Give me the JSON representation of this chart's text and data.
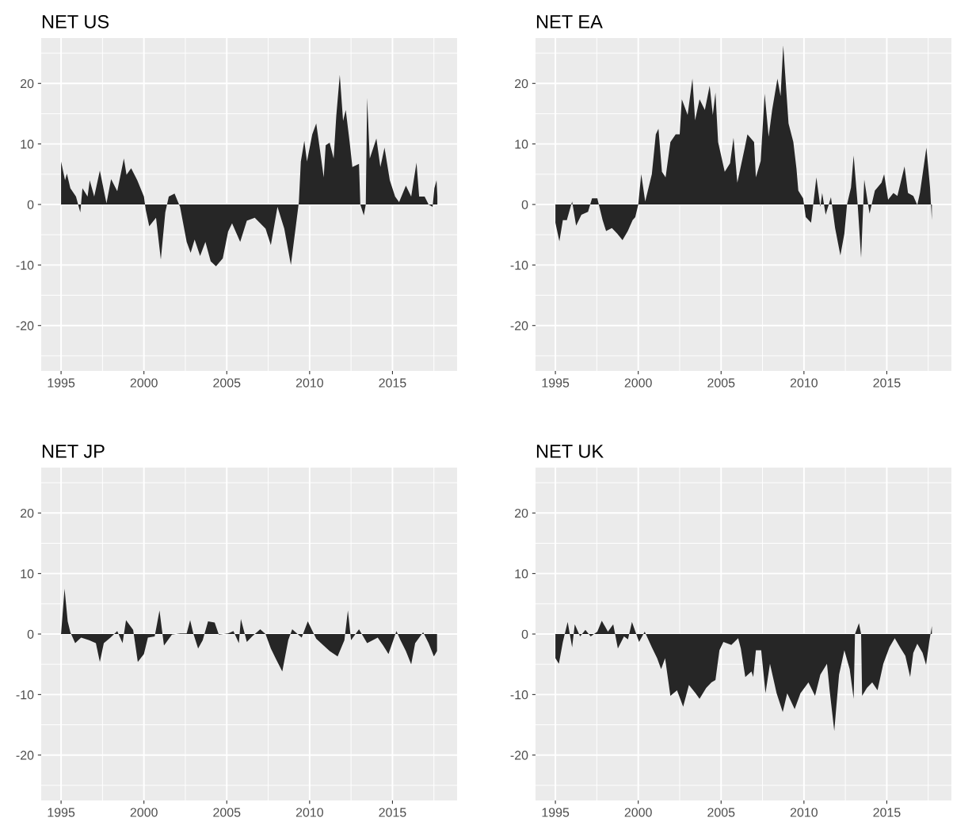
{
  "chart_data": [
    {
      "type": "area",
      "title": "NET US",
      "color": "#262626",
      "grid": true,
      "xlim": [
        1993.8,
        2018.9
      ],
      "ylim": [
        -27.5,
        27.5
      ],
      "xticks": [
        1995,
        2000,
        2005,
        2010,
        2015
      ],
      "yticks": [
        -20,
        -10,
        0,
        10,
        20
      ],
      "x": [
        1995.0,
        1995.24,
        1995.35,
        1995.56,
        1995.9,
        1996.16,
        1996.29,
        1996.6,
        1996.73,
        1997.0,
        1997.34,
        1997.74,
        1998.02,
        1998.39,
        1998.79,
        1998.95,
        1999.23,
        1999.6,
        2000.0,
        2000.11,
        2000.32,
        2000.73,
        2001.02,
        2001.29,
        2001.5,
        2001.85,
        2002.18,
        2002.58,
        2002.82,
        2003.06,
        2003.39,
        2003.71,
        2004.03,
        2004.35,
        2004.76,
        2005.08,
        2005.32,
        2005.81,
        2006.21,
        2006.69,
        2007.02,
        2007.34,
        2007.66,
        2008.06,
        2008.47,
        2008.87,
        2009.19,
        2009.35,
        2009.47,
        2009.68,
        2009.84,
        2010.16,
        2010.4,
        2010.65,
        2010.85,
        2010.97,
        2011.21,
        2011.45,
        2011.61,
        2011.82,
        2012.02,
        2012.18,
        2012.42,
        2012.58,
        2012.98,
        2013.06,
        2013.27,
        2013.39,
        2013.47,
        2013.63,
        2014.03,
        2014.27,
        2014.52,
        2014.84,
        2015.16,
        2015.4,
        2015.81,
        2016.13,
        2016.45,
        2016.61,
        2016.94,
        2017.18,
        2017.42,
        2017.53,
        2017.66,
        2017.71
      ],
      "values": [
        7.1,
        4.0,
        5.1,
        2.7,
        1.3,
        -1.3,
        2.7,
        1.3,
        4.0,
        1.3,
        5.6,
        0.2,
        4.2,
        2.2,
        7.6,
        4.9,
        6.0,
        4.0,
        1.3,
        -0.9,
        -3.6,
        -2.2,
        -9.1,
        -1.3,
        1.3,
        1.8,
        -0.4,
        -6.2,
        -8.0,
        -5.8,
        -8.5,
        -6.2,
        -9.4,
        -10.2,
        -8.9,
        -4.5,
        -3.1,
        -6.2,
        -2.7,
        -2.2,
        -3.1,
        -4.0,
        -6.7,
        -0.4,
        -4.0,
        -10.0,
        -3.1,
        0.4,
        7.1,
        10.5,
        7.1,
        11.6,
        13.4,
        8.5,
        4.5,
        9.8,
        10.2,
        7.6,
        14.7,
        21.4,
        13.8,
        15.6,
        10.2,
        6.2,
        6.7,
        0,
        -1.8,
        0,
        17.6,
        7.6,
        10.9,
        6.2,
        9.4,
        4.0,
        1.3,
        0.4,
        3.1,
        1.3,
        6.9,
        1.3,
        1.3,
        0,
        -0.4,
        2.7,
        4.0,
        1.3
      ]
    },
    {
      "type": "area",
      "title": "NET EA",
      "color": "#262626",
      "grid": true,
      "xlim": [
        1993.8,
        2018.9
      ],
      "ylim": [
        -27.5,
        27.5
      ],
      "xticks": [
        1995,
        2000,
        2005,
        2010,
        2015
      ],
      "yticks": [
        -20,
        -10,
        0,
        10,
        20
      ],
      "x": [
        1995.0,
        1995.24,
        1995.45,
        1995.69,
        1996.01,
        1996.25,
        1996.57,
        1996.97,
        1997.21,
        1997.53,
        1997.85,
        1998.06,
        1998.41,
        1998.73,
        1999.05,
        1999.37,
        1999.66,
        1999.82,
        2000.0,
        2000.18,
        2000.42,
        2000.82,
        2001.06,
        2001.22,
        2001.43,
        2001.65,
        2001.94,
        2002.26,
        2002.5,
        2002.63,
        2002.98,
        2003.27,
        2003.43,
        2003.7,
        2004.02,
        2004.31,
        2004.5,
        2004.66,
        2004.82,
        2005.22,
        2005.54,
        2005.75,
        2005.98,
        2006.43,
        2006.59,
        2006.99,
        2007.1,
        2007.39,
        2007.63,
        2007.87,
        2008.08,
        2008.4,
        2008.59,
        2008.75,
        2009.07,
        2009.36,
        2009.55,
        2009.66,
        2009.95,
        2010.11,
        2010.43,
        2010.56,
        2010.75,
        2010.99,
        2011.1,
        2011.31,
        2011.63,
        2011.88,
        2012.2,
        2012.44,
        2012.6,
        2012.84,
        2013.0,
        2013.24,
        2013.45,
        2013.64,
        2013.96,
        2014.28,
        2014.68,
        2014.84,
        2015.08,
        2015.4,
        2015.64,
        2016.07,
        2016.28,
        2016.6,
        2016.84,
        2017.0,
        2017.39,
        2017.61,
        2017.72
      ],
      "values": [
        -3.0,
        -6.1,
        -2.6,
        -2.6,
        0.5,
        -3.5,
        -1.7,
        -1.2,
        1.0,
        1.0,
        -2.6,
        -4.4,
        -3.9,
        -4.8,
        -5.9,
        -4.4,
        -2.6,
        -2.1,
        0,
        5.0,
        0.5,
        5.0,
        11.6,
        12.5,
        5.4,
        4.5,
        10.3,
        11.6,
        11.6,
        17.4,
        14.8,
        20.8,
        13.9,
        17.4,
        15.6,
        19.6,
        14.8,
        18.5,
        10.3,
        5.4,
        6.8,
        11.0,
        3.6,
        9.4,
        11.6,
        10.3,
        4.5,
        7.2,
        18.3,
        11.2,
        15.6,
        20.8,
        17.9,
        26.3,
        13.4,
        10.3,
        5.9,
        2.3,
        1.0,
        -2.1,
        -3.0,
        0,
        4.5,
        -0.4,
        1.9,
        -1.7,
        1.2,
        -3.9,
        -8.4,
        -4.8,
        0,
        2.8,
        8.1,
        0.1,
        -8.8,
        4.1,
        -1.5,
        2.3,
        3.6,
        5.0,
        0.8,
        1.9,
        1.4,
        6.3,
        1.9,
        1.4,
        -0.1,
        1.9,
        9.4,
        2.8,
        -2.6
      ]
    },
    {
      "type": "area",
      "title": "NET JP",
      "color": "#262626",
      "grid": true,
      "xlim": [
        1993.8,
        2018.9
      ],
      "ylim": [
        -27.5,
        27.5
      ],
      "xticks": [
        1995,
        2000,
        2005,
        2010,
        2015
      ],
      "yticks": [
        -20,
        -10,
        0,
        10,
        20
      ],
      "x": [
        1995.0,
        1995.21,
        1995.4,
        1995.56,
        1995.85,
        1996.21,
        1996.69,
        1997.1,
        1997.34,
        1997.58,
        1997.98,
        1998.39,
        1998.71,
        1998.92,
        1999.35,
        1999.63,
        2000.0,
        2000.24,
        2000.65,
        2000.94,
        2001.21,
        2001.69,
        2002.18,
        2002.58,
        2002.79,
        2002.98,
        2003.27,
        2003.55,
        2003.87,
        2004.27,
        2004.52,
        2005.08,
        2005.4,
        2005.73,
        2005.85,
        2006.21,
        2006.53,
        2007.02,
        2007.34,
        2007.66,
        2007.98,
        2008.35,
        2008.71,
        2008.95,
        2009.52,
        2009.89,
        2010.4,
        2011.21,
        2011.69,
        2012.1,
        2012.31,
        2012.5,
        2012.98,
        2013.47,
        2014.11,
        2014.44,
        2014.76,
        2015.24,
        2015.48,
        2015.81,
        2016.13,
        2016.37,
        2016.85,
        2017.18,
        2017.5,
        2017.69
      ],
      "values": [
        0,
        7.5,
        2.1,
        0.3,
        -1.5,
        -0.6,
        -1.0,
        -1.5,
        -4.6,
        -1.5,
        -0.6,
        0.5,
        -1.5,
        2.3,
        0.7,
        -4.6,
        -3.3,
        -0.6,
        -0.4,
        3.9,
        -1.9,
        -0.1,
        0.1,
        0.1,
        2.3,
        0.1,
        -2.4,
        -1.0,
        2.1,
        1.9,
        -0.1,
        0.1,
        0.5,
        -1.5,
        2.5,
        -1.3,
        -0.4,
        0.8,
        0,
        -2.4,
        -4.2,
        -6.2,
        -1.0,
        0.8,
        -0.6,
        2.1,
        -0.8,
        -2.8,
        -3.7,
        -1.0,
        3.9,
        -1.0,
        0.8,
        -1.5,
        -0.6,
        -1.9,
        -3.3,
        0.5,
        -1.0,
        -2.8,
        -5.0,
        -1.5,
        0.3,
        -1.5,
        -3.7,
        -2.8
      ]
    },
    {
      "type": "area",
      "title": "NET UK",
      "color": "#262626",
      "grid": true,
      "xlim": [
        1993.8,
        2018.9
      ],
      "ylim": [
        -27.5,
        27.5
      ],
      "xticks": [
        1995,
        2000,
        2005,
        2010,
        2015
      ],
      "yticks": [
        -20,
        -10,
        0,
        10,
        20
      ],
      "x": [
        1995.0,
        1995.21,
        1995.45,
        1995.74,
        1996.01,
        1996.17,
        1996.49,
        1996.81,
        1997.13,
        1997.53,
        1997.8,
        1998.17,
        1998.49,
        1998.77,
        1999.14,
        1999.38,
        1999.62,
        2000.05,
        2000.39,
        2000.82,
        2001.14,
        2001.38,
        2001.62,
        2001.94,
        2002.34,
        2002.71,
        2003.06,
        2003.46,
        2003.7,
        2004.1,
        2004.42,
        2004.66,
        2004.9,
        2005.14,
        2005.62,
        2006.03,
        2006.19,
        2006.46,
        2006.83,
        2006.94,
        2007.1,
        2007.42,
        2007.68,
        2007.95,
        2008.35,
        2008.72,
        2008.99,
        2009.44,
        2009.79,
        2010.27,
        2010.67,
        2010.99,
        2011.39,
        2011.55,
        2011.83,
        2012.12,
        2012.44,
        2012.76,
        2013.0,
        2013.08,
        2013.32,
        2013.45,
        2013.51,
        2013.8,
        2014.12,
        2014.44,
        2014.79,
        2015.16,
        2015.48,
        2015.8,
        2016.12,
        2016.41,
        2016.6,
        2016.84,
        2017.16,
        2017.37,
        2017.56,
        2017.72
      ],
      "values": [
        -4.0,
        -4.9,
        -1.3,
        2.0,
        -2.2,
        1.6,
        -0.4,
        0.7,
        -0.4,
        0.4,
        2.2,
        0.4,
        1.6,
        -2.4,
        -0.4,
        -0.9,
        2.0,
        -1.3,
        0.4,
        -2.2,
        -4.0,
        -5.8,
        -4.0,
        -10.2,
        -9.3,
        -12.0,
        -8.4,
        -9.8,
        -10.7,
        -8.9,
        -8.0,
        -7.6,
        -2.7,
        -1.3,
        -1.8,
        -0.7,
        -2.4,
        -7.1,
        -6.2,
        -7.1,
        -2.7,
        -2.7,
        -9.8,
        -4.9,
        -9.8,
        -12.9,
        -9.8,
        -12.4,
        -9.8,
        -8.0,
        -10.2,
        -6.7,
        -4.9,
        -9.3,
        -16.0,
        -6.7,
        -2.7,
        -5.8,
        -10.7,
        0,
        1.8,
        0,
        -10.2,
        -8.9,
        -8.0,
        -9.3,
        -4.9,
        -2.2,
        -0.7,
        -2.2,
        -3.6,
        -7.1,
        -3.1,
        -1.6,
        -3.1,
        -5.1,
        -1.3,
        1.3
      ]
    }
  ]
}
